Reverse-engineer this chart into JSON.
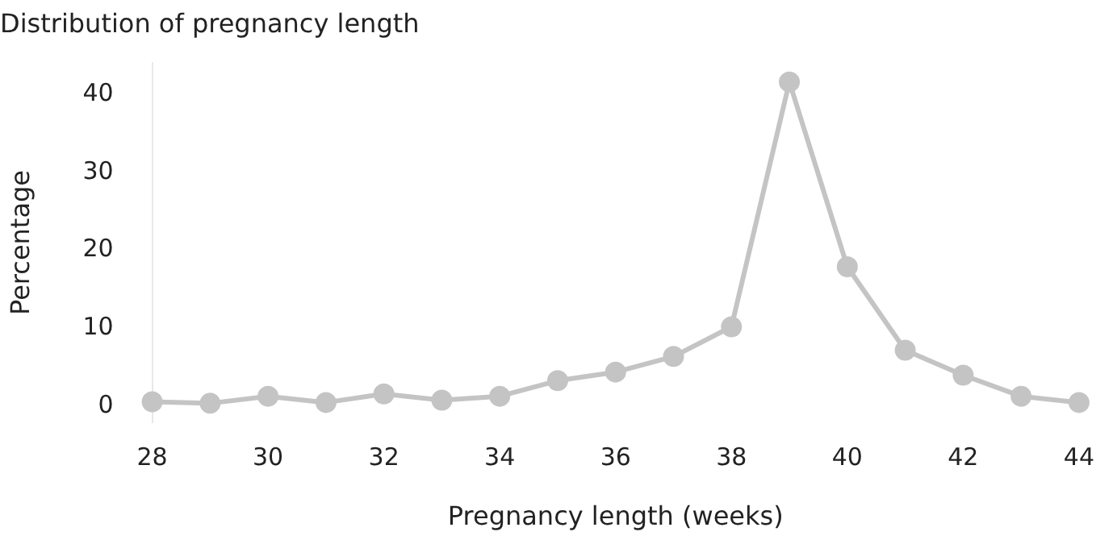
{
  "chart_data": {
    "type": "line",
    "title": "Distribution of pregnancy length",
    "xlabel": "Pregnancy length (weeks)",
    "ylabel": "Percentage",
    "x": [
      28,
      29,
      30,
      31,
      32,
      33,
      34,
      35,
      36,
      37,
      38,
      39,
      40,
      41,
      42,
      43,
      44
    ],
    "series": [
      {
        "color": "#c4c4c4",
        "values": [
          0.6,
          0.4,
          1.3,
          0.5,
          1.6,
          0.8,
          1.3,
          3.3,
          4.4,
          6.4,
          10.2,
          41.6,
          17.9,
          7.2,
          4.0,
          1.3,
          0.5
        ]
      }
    ],
    "xlim": [
      28,
      44
    ],
    "xticks": [
      28,
      30,
      32,
      34,
      36,
      38,
      40,
      42,
      44
    ],
    "ylim": [
      -2,
      44
    ],
    "yticks": [
      0,
      10,
      20,
      30,
      40
    ],
    "grid": false,
    "legend": false,
    "marker": "circle",
    "line_style": "solid"
  }
}
